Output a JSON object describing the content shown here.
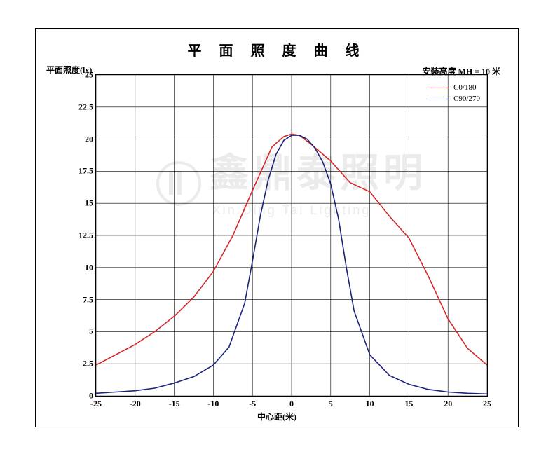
{
  "chart": {
    "type": "line",
    "title": "平 面 照 度 曲 线",
    "y_axis_label": "平面照度(lx)",
    "x_axis_label": "中心距(米)",
    "mount_height_label": "安装高度 MH = 10 米",
    "title_fontsize": 20,
    "label_fontsize": 12,
    "background_color": "#ffffff",
    "frame_color": "#000000",
    "grid_color": "#000000",
    "xlim": [
      -25,
      25
    ],
    "ylim": [
      0,
      25
    ],
    "x_ticks": [
      -25,
      -20,
      -15,
      -10,
      -5,
      0,
      5,
      10,
      15,
      20,
      25
    ],
    "y_ticks": [
      0,
      2.5,
      5,
      7.5,
      10,
      12.5,
      15,
      17.5,
      20,
      22.5,
      25
    ],
    "line_width": 1.6,
    "legend_position": "top-right",
    "series": [
      {
        "name": "C0/180",
        "color": "#d62828",
        "x": [
          -25,
          -22.5,
          -20,
          -17.5,
          -15,
          -12.5,
          -10,
          -7.5,
          -5,
          -2.5,
          -1,
          0,
          1,
          2.5,
          5,
          7.5,
          10,
          12.5,
          15,
          17.5,
          20,
          22.5,
          25
        ],
        "y": [
          2.4,
          3.2,
          4.0,
          5.0,
          6.2,
          7.7,
          9.7,
          12.5,
          16.0,
          19.4,
          20.2,
          20.4,
          20.3,
          19.6,
          18.3,
          16.6,
          15.9,
          14.0,
          12.3,
          9.3,
          6.0,
          3.7,
          2.4
        ]
      },
      {
        "name": "C90/270",
        "color": "#1a237e",
        "x": [
          -25,
          -22.5,
          -20,
          -17.5,
          -15,
          -12.5,
          -10,
          -8,
          -6,
          -5,
          -4,
          -3,
          -2,
          -1,
          0,
          1,
          2,
          3,
          4,
          5,
          6,
          7,
          8,
          10,
          12.5,
          15,
          17.5,
          20,
          22.5,
          25
        ],
        "y": [
          0.2,
          0.3,
          0.4,
          0.6,
          1.0,
          1.5,
          2.4,
          3.8,
          7.2,
          10.5,
          14.0,
          16.8,
          18.8,
          19.9,
          20.3,
          20.3,
          20.0,
          19.3,
          18.2,
          16.5,
          13.8,
          10.0,
          6.6,
          3.2,
          1.6,
          0.9,
          0.5,
          0.3,
          0.2,
          0.15
        ]
      }
    ],
    "watermark": {
      "main_text": "鑫鼎泰照明",
      "sub_text": "Xin Ding Tai Lighting",
      "color": "#e8e8e8",
      "main_fontsize": 56,
      "sub_fontsize": 18
    }
  }
}
